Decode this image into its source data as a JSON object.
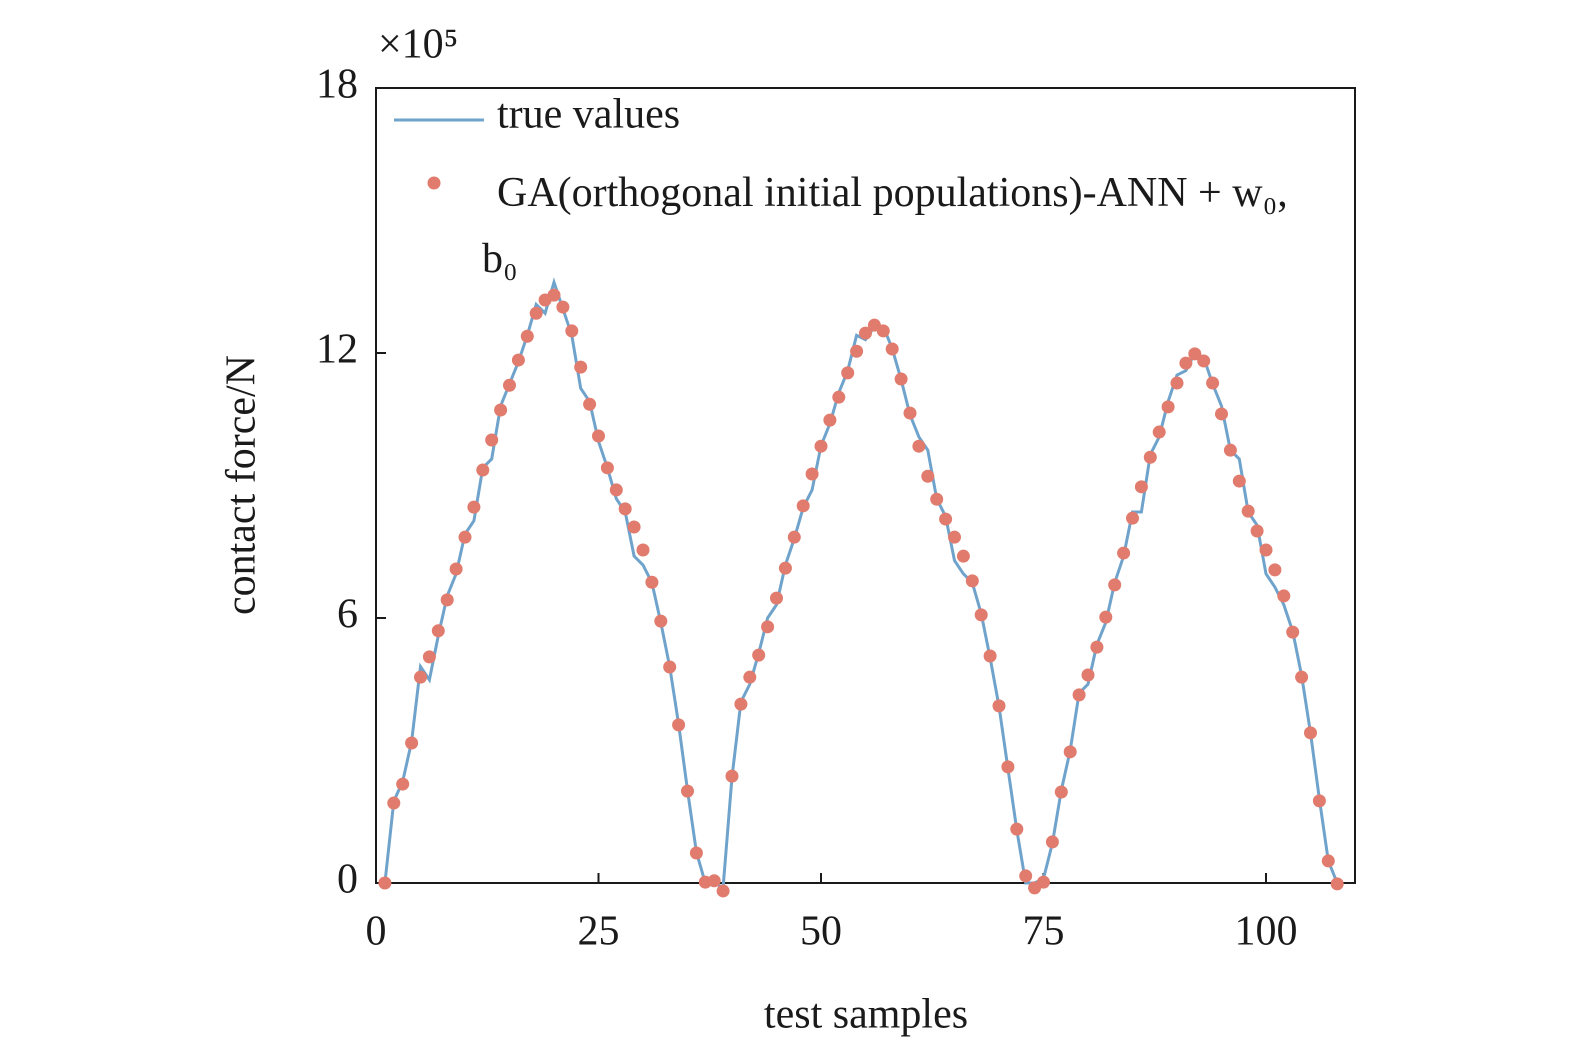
{
  "chart_data": {
    "type": "line_scatter",
    "x_label": "test samples",
    "y_label": "contact force/N",
    "y_multiplier": "×10⁵",
    "x": [
      1,
      2,
      3,
      4,
      5,
      6,
      7,
      8,
      9,
      10,
      11,
      12,
      13,
      14,
      15,
      16,
      17,
      18,
      19,
      20,
      21,
      22,
      23,
      24,
      25,
      26,
      27,
      28,
      29,
      30,
      31,
      32,
      33,
      34,
      35,
      36,
      37,
      38,
      39,
      40,
      41,
      42,
      43,
      44,
      45,
      46,
      47,
      48,
      49,
      50,
      51,
      52,
      53,
      54,
      55,
      56,
      57,
      58,
      59,
      60,
      61,
      62,
      63,
      64,
      65,
      66,
      67,
      68,
      69,
      70,
      71,
      72,
      73,
      74,
      75,
      76,
      77,
      78,
      79,
      80,
      81,
      82,
      83,
      84,
      85,
      86,
      87,
      88,
      89,
      90,
      91,
      92,
      93,
      94,
      95,
      96,
      97,
      98,
      99,
      100,
      101,
      102,
      103,
      104,
      105,
      106,
      107,
      108
    ],
    "series": [
      {
        "name": "true values",
        "color": "#6fa3cb",
        "kind": "line",
        "values": [
          0,
          1.85,
          2.3,
          3.2,
          4.9,
          4.6,
          5.6,
          6.5,
          7.0,
          7.9,
          8.2,
          9.4,
          9.6,
          10.8,
          11.3,
          11.8,
          12.4,
          13.1,
          12.9,
          13.6,
          13.0,
          12.4,
          11.2,
          10.9,
          10.0,
          9.4,
          8.7,
          8.4,
          7.4,
          7.2,
          6.8,
          5.9,
          4.9,
          3.6,
          2.1,
          0.7,
          0,
          0,
          -0.1,
          2.4,
          4.1,
          4.5,
          5.2,
          6.0,
          6.3,
          7.2,
          7.8,
          8.5,
          8.9,
          9.9,
          10.4,
          11.1,
          11.6,
          12.4,
          12.3,
          12.6,
          12.6,
          12.1,
          11.4,
          10.6,
          10.1,
          9.8,
          8.7,
          8.3,
          7.3,
          7.0,
          6.8,
          6.1,
          5.1,
          4.0,
          2.6,
          1.2,
          0,
          0,
          0.1,
          0.9,
          2.1,
          3.0,
          4.3,
          4.5,
          5.4,
          5.9,
          6.8,
          7.4,
          8.4,
          8.4,
          9.7,
          10.1,
          10.9,
          11.5,
          11.6,
          12.0,
          11.9,
          11.3,
          10.8,
          9.8,
          9.6,
          8.4,
          8.1,
          7.0,
          6.7,
          6.3,
          5.7,
          4.7,
          3.4,
          1.9,
          0.5,
          0
        ]
      },
      {
        "name": "GA(orthogonal initial populations)-ANN + w₀, b₀",
        "color": "#e07b6d",
        "kind": "scatter",
        "values": [
          0,
          1.81,
          2.24,
          3.17,
          4.66,
          5.12,
          5.71,
          6.41,
          7.11,
          7.83,
          8.51,
          9.35,
          10.03,
          10.71,
          11.27,
          11.84,
          12.38,
          12.9,
          13.2,
          13.31,
          13.04,
          12.5,
          11.68,
          10.84,
          10.12,
          9.4,
          8.9,
          8.47,
          8.06,
          7.54,
          6.81,
          5.93,
          4.89,
          3.58,
          2.08,
          0.68,
          0.02,
          0.05,
          -0.18,
          2.42,
          4.05,
          4.66,
          5.16,
          5.8,
          6.45,
          7.13,
          7.83,
          8.54,
          9.26,
          9.89,
          10.48,
          11.0,
          11.55,
          12.04,
          12.45,
          12.63,
          12.5,
          12.09,
          11.41,
          10.64,
          9.89,
          9.21,
          8.69,
          8.24,
          7.83,
          7.4,
          6.84,
          6.07,
          5.14,
          4.01,
          2.63,
          1.22,
          0.16,
          -0.11,
          0.02,
          0.93,
          2.06,
          2.97,
          4.26,
          4.71,
          5.34,
          6.02,
          6.75,
          7.47,
          8.26,
          8.97,
          9.64,
          10.21,
          10.78,
          11.32,
          11.77,
          11.98,
          11.82,
          11.32,
          10.62,
          9.8,
          9.1,
          8.42,
          7.97,
          7.54,
          7.09,
          6.5,
          5.68,
          4.66,
          3.4,
          1.86,
          0.5,
          -0.02
        ]
      }
    ],
    "xlim": [
      0,
      110
    ],
    "ylim": [
      0,
      18
    ],
    "xticks": [
      0,
      25,
      50,
      75,
      100
    ],
    "yticks": [
      0,
      6,
      12,
      18
    ]
  }
}
